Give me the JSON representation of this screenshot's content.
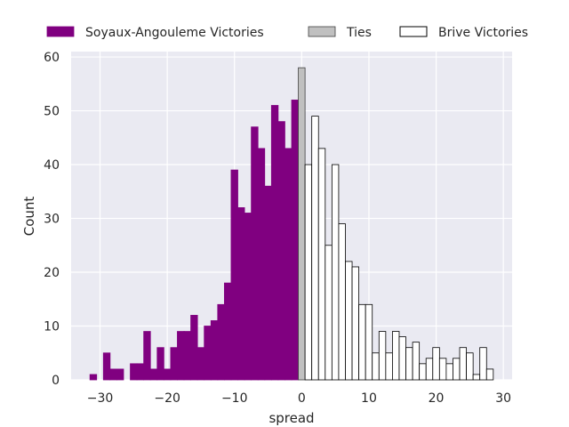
{
  "chart_data": {
    "type": "bar",
    "subtype": "histogram",
    "xlabel": "spread",
    "ylabel": "Count",
    "xlim": [
      -34.3,
      31.3
    ],
    "ylim": [
      0,
      61
    ],
    "x_ticks": [
      -30,
      -20,
      -10,
      0,
      10,
      20,
      30
    ],
    "y_ticks": [
      0,
      10,
      20,
      30,
      40,
      50,
      60
    ],
    "grid": true,
    "legend_position": "top",
    "bin_width": 1,
    "series": [
      {
        "name": "Soyaux-Angouleme Victories",
        "color": "#800080",
        "edge_color": "#800080",
        "bins": [
          {
            "x": -31,
            "count": 1
          },
          {
            "x": -30,
            "count": 0
          },
          {
            "x": -29,
            "count": 5
          },
          {
            "x": -28,
            "count": 2
          },
          {
            "x": -27,
            "count": 2
          },
          {
            "x": -26,
            "count": 0
          },
          {
            "x": -25,
            "count": 3
          },
          {
            "x": -24,
            "count": 3
          },
          {
            "x": -23,
            "count": 9
          },
          {
            "x": -22,
            "count": 2
          },
          {
            "x": -21,
            "count": 6
          },
          {
            "x": -20,
            "count": 2
          },
          {
            "x": -19,
            "count": 6
          },
          {
            "x": -18,
            "count": 9
          },
          {
            "x": -17,
            "count": 9
          },
          {
            "x": -16,
            "count": 12
          },
          {
            "x": -15,
            "count": 6
          },
          {
            "x": -14,
            "count": 10
          },
          {
            "x": -13,
            "count": 11
          },
          {
            "x": -12,
            "count": 14
          },
          {
            "x": -11,
            "count": 18
          },
          {
            "x": -10,
            "count": 39
          },
          {
            "x": -9,
            "count": 32
          },
          {
            "x": -8,
            "count": 31
          },
          {
            "x": -7,
            "count": 47
          },
          {
            "x": -6,
            "count": 43
          },
          {
            "x": -5,
            "count": 36
          },
          {
            "x": -4,
            "count": 51
          },
          {
            "x": -3,
            "count": 48
          },
          {
            "x": -2,
            "count": 43
          },
          {
            "x": -1,
            "count": 52
          }
        ]
      },
      {
        "name": "Ties",
        "color": "#c0c0c0",
        "edge_color": "#404040",
        "bins": [
          {
            "x": 0,
            "count": 58
          }
        ]
      },
      {
        "name": "Brive Victories",
        "color": "#ffffff",
        "edge_color": "#000000",
        "bins": [
          {
            "x": 1,
            "count": 40
          },
          {
            "x": 2,
            "count": 49
          },
          {
            "x": 3,
            "count": 43
          },
          {
            "x": 4,
            "count": 25
          },
          {
            "x": 5,
            "count": 40
          },
          {
            "x": 6,
            "count": 29
          },
          {
            "x": 7,
            "count": 22
          },
          {
            "x": 8,
            "count": 21
          },
          {
            "x": 9,
            "count": 14
          },
          {
            "x": 10,
            "count": 14
          },
          {
            "x": 11,
            "count": 5
          },
          {
            "x": 12,
            "count": 9
          },
          {
            "x": 13,
            "count": 5
          },
          {
            "x": 14,
            "count": 9
          },
          {
            "x": 15,
            "count": 8
          },
          {
            "x": 16,
            "count": 6
          },
          {
            "x": 17,
            "count": 7
          },
          {
            "x": 18,
            "count": 3
          },
          {
            "x": 19,
            "count": 4
          },
          {
            "x": 20,
            "count": 6
          },
          {
            "x": 21,
            "count": 4
          },
          {
            "x": 22,
            "count": 3
          },
          {
            "x": 23,
            "count": 4
          },
          {
            "x": 24,
            "count": 6
          },
          {
            "x": 25,
            "count": 5
          },
          {
            "x": 26,
            "count": 1
          },
          {
            "x": 27,
            "count": 6
          },
          {
            "x": 28,
            "count": 2
          }
        ]
      }
    ]
  }
}
